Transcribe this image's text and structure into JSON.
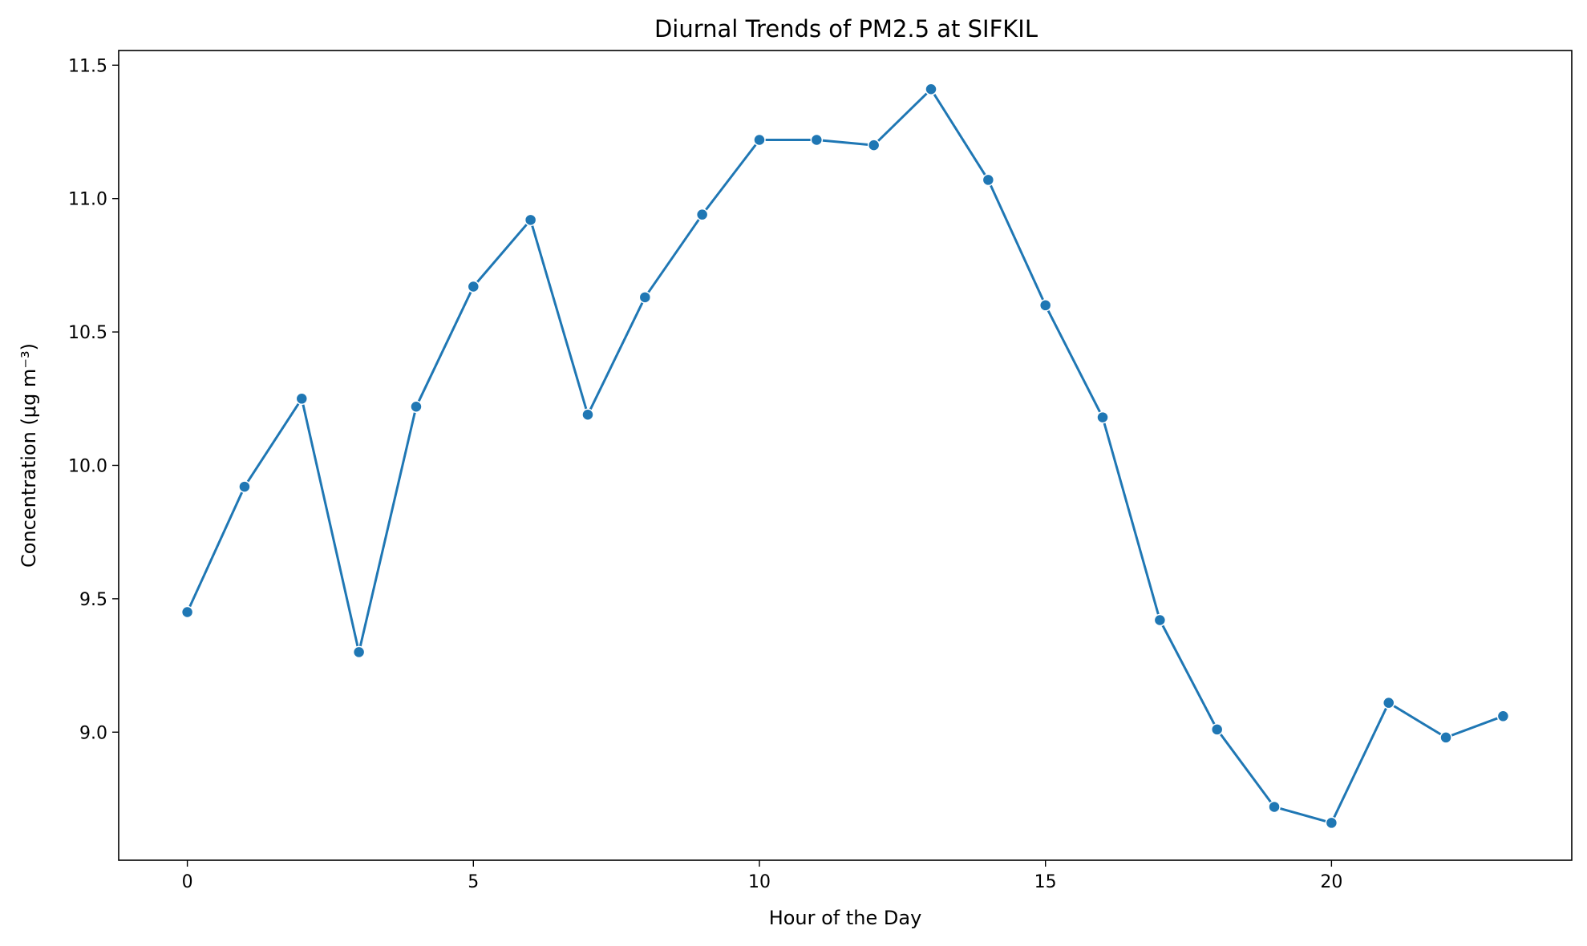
{
  "chart_data": {
    "type": "line",
    "title": "Diurnal Trends of PM2.5 at SIFKIL",
    "xlabel": "Hour of the Day",
    "ylabel": "Concentration (μg m⁻³)",
    "xlim": [
      -1.2,
      24.2
    ],
    "ylim": [
      8.52,
      11.555
    ],
    "x_ticks": [
      0,
      5,
      10,
      15,
      20
    ],
    "y_ticks": [
      9.0,
      9.5,
      10.0,
      10.5,
      11.0,
      11.5
    ],
    "y_tick_labels": [
      "9.0",
      "9.5",
      "10.0",
      "10.5",
      "11.0",
      "11.5"
    ],
    "grid": false,
    "line_color": "#1f77b4",
    "marker_edge_color": "#ffffff",
    "series": [
      {
        "x": [
          0,
          1,
          2,
          3,
          4,
          5,
          6,
          7,
          8,
          9,
          10,
          11,
          12,
          13,
          14,
          15,
          16,
          17,
          18,
          19,
          20,
          21,
          22,
          23
        ],
        "values": [
          9.45,
          9.92,
          10.25,
          9.3,
          10.22,
          10.67,
          10.92,
          10.19,
          10.63,
          10.94,
          11.22,
          11.22,
          11.2,
          11.41,
          11.07,
          10.6,
          10.18,
          9.42,
          9.01,
          8.72,
          8.66,
          9.11,
          8.98,
          9.06
        ]
      }
    ]
  }
}
